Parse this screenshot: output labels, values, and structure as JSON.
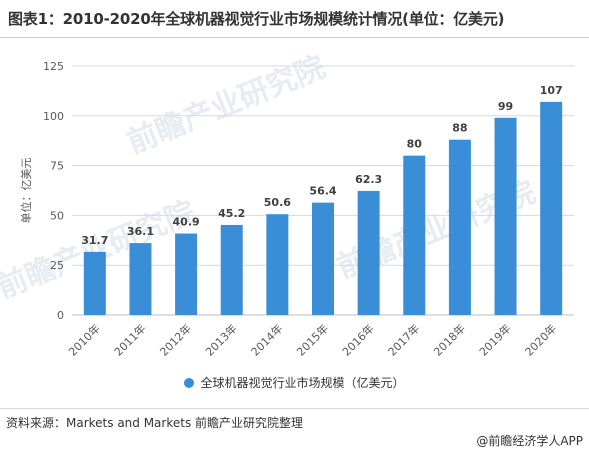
{
  "title": "图表1：2010-2020年全球机器视觉行业市场规模统计情况(单位：亿美元)",
  "watermark": "前瞻产业研究院",
  "source": "资料来源：Markets and Markets 前瞻产业研究院整理",
  "brand": "@前瞻经济学人APP",
  "colors": {
    "bar": "#3a8ed8",
    "grid": "#d9d9d9",
    "text": "#595959"
  },
  "chart_data": {
    "type": "bar",
    "categories": [
      "2010年",
      "2011年",
      "2012年",
      "2013年",
      "2014年",
      "2015年",
      "2016年",
      "2017年",
      "2018年",
      "2019年",
      "2020年"
    ],
    "series": [
      {
        "name": "全球机器视觉行业市场规模（亿美元）",
        "values": [
          31.7,
          36.1,
          40.9,
          45.2,
          50.6,
          56.4,
          62.3,
          80,
          88,
          99,
          107
        ]
      }
    ],
    "data_labels": [
      "31.7",
      "36.1",
      "40.9",
      "45.2",
      "50.6",
      "56.4",
      "62.3",
      "80",
      "88",
      "99",
      "107"
    ],
    "ylabel": "单位：亿美元",
    "xlabel": "",
    "ylim": [
      0,
      125
    ],
    "yticks": [
      0,
      25,
      50,
      75,
      100,
      125
    ],
    "grid": true,
    "legend": "bottom"
  }
}
